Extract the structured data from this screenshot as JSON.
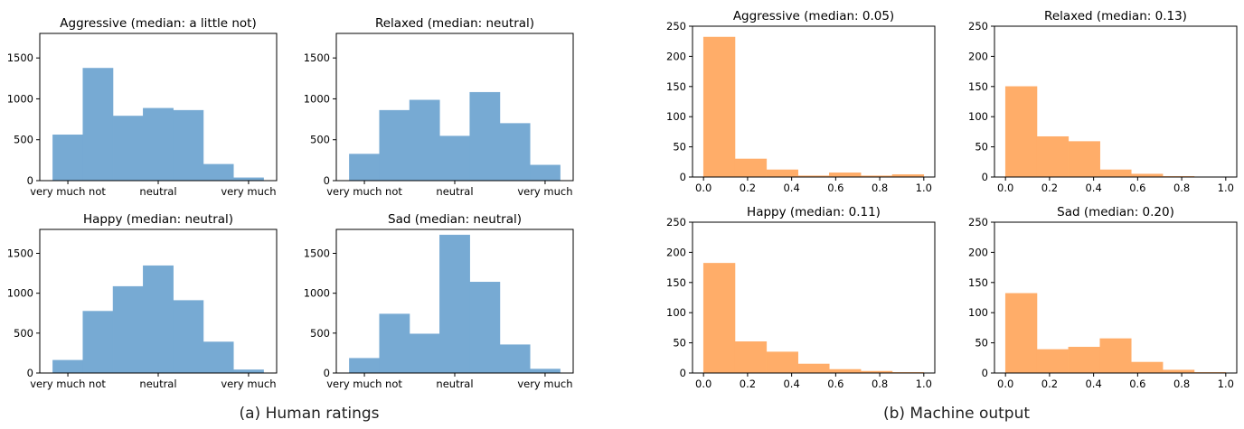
{
  "captions": {
    "left": "(a) Human ratings",
    "right": "(b) Machine output"
  },
  "colors": {
    "human": "#77aad3",
    "machine": "#ffad69"
  },
  "chart_data": [
    {
      "type": "bar",
      "group": "human",
      "title": "Aggressive (median: a little not)",
      "values": [
        560,
        1375,
        790,
        885,
        860,
        200,
        35
      ],
      "ylim": [
        0,
        1800
      ],
      "yticks": [
        0,
        500,
        1000,
        1500
      ],
      "xtick_labels": [
        "very much not",
        "neutral",
        "very much"
      ],
      "grid": false
    },
    {
      "type": "bar",
      "group": "human",
      "title": "Relaxed (median: neutral)",
      "values": [
        325,
        860,
        985,
        545,
        1080,
        700,
        190
      ],
      "ylim": [
        0,
        1800
      ],
      "yticks": [
        0,
        500,
        1000,
        1500
      ],
      "xtick_labels": [
        "very much not",
        "neutral",
        "very much"
      ],
      "grid": false
    },
    {
      "type": "bar",
      "group": "human",
      "title": "Happy (median: neutral)",
      "values": [
        160,
        775,
        1085,
        1345,
        910,
        390,
        40
      ],
      "ylim": [
        0,
        1800
      ],
      "yticks": [
        0,
        500,
        1000,
        1500
      ],
      "xtick_labels": [
        "very much not",
        "neutral",
        "very much"
      ],
      "grid": false
    },
    {
      "type": "bar",
      "group": "human",
      "title": "Sad (median: neutral)",
      "values": [
        185,
        740,
        490,
        1730,
        1140,
        355,
        50
      ],
      "ylim": [
        0,
        1800
      ],
      "yticks": [
        0,
        500,
        1000,
        1500
      ],
      "xtick_labels": [
        "very much not",
        "neutral",
        "very much"
      ],
      "grid": false
    },
    {
      "type": "bar",
      "group": "machine",
      "title": "Aggressive (median: 0.05)",
      "bin_edges": [
        0,
        0.143,
        0.286,
        0.429,
        0.571,
        0.714,
        0.857,
        1.0
      ],
      "values": [
        232,
        30,
        12,
        2,
        7,
        2,
        4
      ],
      "xlim": [
        -0.05,
        1.05
      ],
      "ylim": [
        0,
        250
      ],
      "xticks": [
        "0.0",
        "0.2",
        "0.4",
        "0.6",
        "0.8",
        "1.0"
      ],
      "yticks": [
        0,
        50,
        100,
        150,
        200,
        250
      ],
      "grid": false
    },
    {
      "type": "bar",
      "group": "machine",
      "title": "Relaxed (median: 0.13)",
      "bin_edges": [
        0,
        0.143,
        0.286,
        0.429,
        0.571,
        0.714,
        0.857,
        1.0
      ],
      "values": [
        150,
        67,
        59,
        12,
        5,
        1,
        0
      ],
      "xlim": [
        -0.05,
        1.05
      ],
      "ylim": [
        0,
        250
      ],
      "xticks": [
        "0.0",
        "0.2",
        "0.4",
        "0.6",
        "0.8",
        "1.0"
      ],
      "yticks": [
        0,
        50,
        100,
        150,
        200,
        250
      ],
      "grid": false
    },
    {
      "type": "bar",
      "group": "machine",
      "title": "Happy (median: 0.11)",
      "bin_edges": [
        0,
        0.143,
        0.286,
        0.429,
        0.571,
        0.714,
        0.857,
        1.0
      ],
      "values": [
        182,
        52,
        35,
        15,
        6,
        3,
        1
      ],
      "xlim": [
        -0.05,
        1.05
      ],
      "ylim": [
        0,
        250
      ],
      "xticks": [
        "0.0",
        "0.2",
        "0.4",
        "0.6",
        "0.8",
        "1.0"
      ],
      "yticks": [
        0,
        50,
        100,
        150,
        200,
        250
      ],
      "grid": false
    },
    {
      "type": "bar",
      "group": "machine",
      "title": "Sad (median: 0.20)",
      "bin_edges": [
        0,
        0.143,
        0.286,
        0.429,
        0.571,
        0.714,
        0.857,
        1.0
      ],
      "values": [
        132,
        39,
        43,
        57,
        18,
        5,
        1
      ],
      "xlim": [
        -0.05,
        1.05
      ],
      "ylim": [
        0,
        250
      ],
      "xticks": [
        "0.0",
        "0.2",
        "0.4",
        "0.6",
        "0.8",
        "1.0"
      ],
      "yticks": [
        0,
        50,
        100,
        150,
        200,
        250
      ],
      "grid": false
    }
  ]
}
